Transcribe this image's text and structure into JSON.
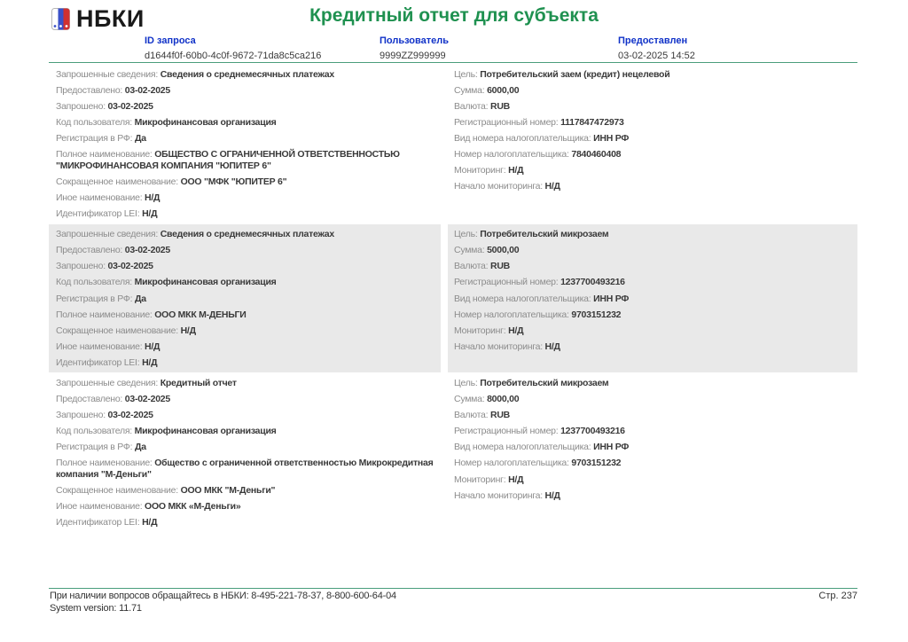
{
  "header": {
    "logo_text": "НБКИ",
    "logo_icon": "nbki-flag-card-icon",
    "title": "Кредитный отчет для субъекта",
    "meta": {
      "request_id": {
        "label": "ID запроса",
        "value": "d1644f0f-60b0-4c0f-9672-71da8c5ca216"
      },
      "user": {
        "label": "Пользователь",
        "value": "9999ZZ999999"
      },
      "provided": {
        "label": "Предоставлен",
        "value": "03-02-2025 14:52"
      }
    }
  },
  "blocks": [
    {
      "shaded": false,
      "left": [
        {
          "label": "Запрошенные сведения:",
          "value": "Сведения о среднемесячных платежах"
        },
        {
          "label": "Предоставлено:",
          "value": "03-02-2025"
        },
        {
          "label": "Запрошено:",
          "value": "03-02-2025"
        },
        {
          "label": "Код пользователя:",
          "value": "Микрофинансовая организация"
        },
        {
          "label": "Регистрация в РФ:",
          "value": "Да"
        },
        {
          "label": "Полное наименование:",
          "value": "ОБЩЕСТВО С ОГРАНИЧЕННОЙ ОТВЕТСТВЕННОСТЬЮ \"МИКРОФИНАНСОВАЯ КОМПАНИЯ \"ЮПИТЕР 6\""
        },
        {
          "label": "Сокращенное наименование:",
          "value": "ООО \"МФК \"ЮПИТЕР 6\""
        },
        {
          "label": "Иное наименование:",
          "value": "Н/Д"
        },
        {
          "label": "Идентификатор LEI:",
          "value": "Н/Д"
        }
      ],
      "right": [
        {
          "label": "Цель:",
          "value": "Потребительский заем (кредит) нецелевой"
        },
        {
          "label": "Сумма:",
          "value": "6000,00"
        },
        {
          "label": "Валюта:",
          "value": "RUB"
        },
        {
          "label": "Регистрационный номер:",
          "value": "1117847472973"
        },
        {
          "label": "Вид номера налогоплательщика:",
          "value": "ИНН РФ"
        },
        {
          "label": "Номер налогоплательщика:",
          "value": "7840460408"
        },
        {
          "label": "Мониторинг:",
          "value": "Н/Д"
        },
        {
          "label": "Начало мониторинга:",
          "value": "Н/Д"
        }
      ]
    },
    {
      "shaded": true,
      "left": [
        {
          "label": "Запрошенные сведения:",
          "value": "Сведения о среднемесячных платежах"
        },
        {
          "label": "Предоставлено:",
          "value": "03-02-2025"
        },
        {
          "label": "Запрошено:",
          "value": "03-02-2025"
        },
        {
          "label": "Код пользователя:",
          "value": "Микрофинансовая организация"
        },
        {
          "label": "Регистрация в РФ:",
          "value": "Да"
        },
        {
          "label": "Полное наименование:",
          "value": "ООО МКК М-ДЕНЬГИ"
        },
        {
          "label": "Сокращенное наименование:",
          "value": "Н/Д"
        },
        {
          "label": "Иное наименование:",
          "value": "Н/Д"
        },
        {
          "label": "Идентификатор LEI:",
          "value": "Н/Д"
        }
      ],
      "right": [
        {
          "label": "Цель:",
          "value": "Потребительский микрозаем"
        },
        {
          "label": "Сумма:",
          "value": "5000,00"
        },
        {
          "label": "Валюта:",
          "value": "RUB"
        },
        {
          "label": "Регистрационный номер:",
          "value": "1237700493216"
        },
        {
          "label": "Вид номера налогоплательщика:",
          "value": "ИНН РФ"
        },
        {
          "label": "Номер налогоплательщика:",
          "value": "9703151232"
        },
        {
          "label": "Мониторинг:",
          "value": "Н/Д"
        },
        {
          "label": "Начало мониторинга:",
          "value": "Н/Д"
        }
      ]
    },
    {
      "shaded": false,
      "left": [
        {
          "label": "Запрошенные сведения:",
          "value": "Кредитный отчет"
        },
        {
          "label": "Предоставлено:",
          "value": "03-02-2025"
        },
        {
          "label": "Запрошено:",
          "value": "03-02-2025"
        },
        {
          "label": "Код пользователя:",
          "value": "Микрофинансовая организация"
        },
        {
          "label": "Регистрация в РФ:",
          "value": "Да"
        },
        {
          "label": "Полное наименование:",
          "value": "Общество с ограниченной ответственностью Микрокредитная компания \"М-Деньги\""
        },
        {
          "label": "Сокращенное наименование:",
          "value": "ООО МКК \"М-Деньги\""
        },
        {
          "label": "Иное наименование:",
          "value": "ООО МКК «М-Деньги»"
        },
        {
          "label": "Идентификатор LEI:",
          "value": "Н/Д"
        }
      ],
      "right": [
        {
          "label": "Цель:",
          "value": "Потребительский микрозаем"
        },
        {
          "label": "Сумма:",
          "value": "8000,00"
        },
        {
          "label": "Валюта:",
          "value": "RUB"
        },
        {
          "label": "Регистрационный номер:",
          "value": "1237700493216"
        },
        {
          "label": "Вид номера налогоплательщика:",
          "value": "ИНН РФ"
        },
        {
          "label": "Номер налогоплательщика:",
          "value": "9703151232"
        },
        {
          "label": "Мониторинг:",
          "value": "Н/Д"
        },
        {
          "label": "Начало мониторинга:",
          "value": "Н/Д"
        }
      ]
    }
  ],
  "footer": {
    "contact": "При наличии вопросов обращайтесь в НБКИ: 8-495-221-78-37, 8-800-600-64-04",
    "system_version": "System version: 11.71",
    "page_number": "Стр. 237"
  },
  "colors": {
    "title_green": "#1f9150",
    "label_blue": "#1032c8",
    "rule_green": "#4a9e7c",
    "shaded_bg": "#e9e9e9",
    "label_gray": "#8c8c8c",
    "value_dark": "#3a3a3a",
    "logo_black": "#1a1a1a",
    "flag_blue": "#3a50c8",
    "flag_red": "#d03030"
  }
}
